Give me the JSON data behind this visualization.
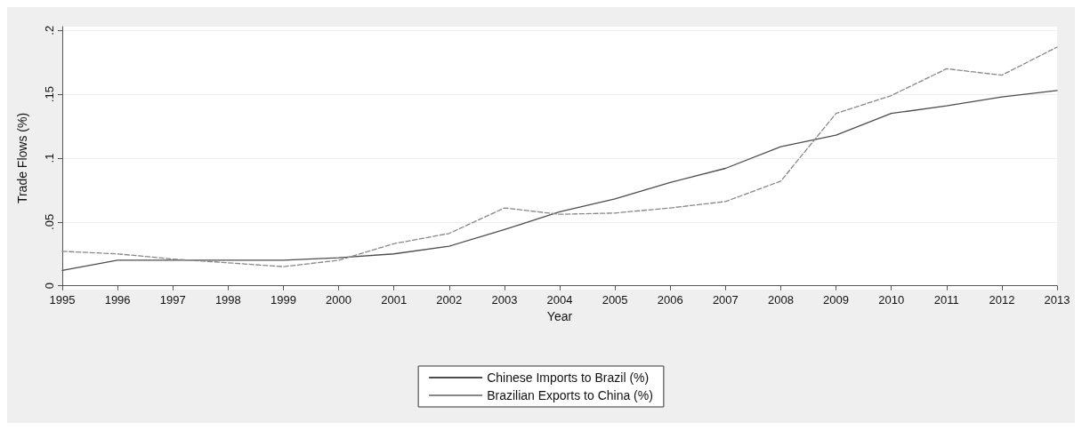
{
  "chart_data": {
    "type": "line",
    "xlabel": "Year",
    "ylabel": "Trade Flows (%)",
    "categories": [
      "1995",
      "1996",
      "1997",
      "1998",
      "1999",
      "2000",
      "2001",
      "2002",
      "2003",
      "2004",
      "2005",
      "2006",
      "2007",
      "2008",
      "2009",
      "2010",
      "2011",
      "2012",
      "2013"
    ],
    "series": [
      {
        "name": "Chinese Imports to Brazil (%)",
        "color": "#4d4d4d",
        "line_style": "solid",
        "values": [
          0.012,
          0.02,
          0.02,
          0.02,
          0.02,
          0.022,
          0.025,
          0.031,
          0.044,
          0.058,
          0.068,
          0.081,
          0.092,
          0.109,
          0.118,
          0.135,
          0.141,
          0.148,
          0.153
        ]
      },
      {
        "name": "Brazilian Exports to China (%)",
        "color": "#888888",
        "line_style": "dashed",
        "values": [
          0.027,
          0.025,
          0.021,
          0.018,
          0.015,
          0.02,
          0.033,
          0.041,
          0.061,
          0.056,
          0.057,
          0.061,
          0.066,
          0.082,
          0.135,
          0.149,
          0.17,
          0.165,
          0.187
        ]
      }
    ],
    "ylim": [
      -0.003,
      0.203
    ],
    "yticks": [
      {
        "value": 0,
        "label": "0"
      },
      {
        "value": 0.05,
        "label": ".05"
      },
      {
        "value": 0.1,
        "label": ".1"
      },
      {
        "value": 0.15,
        "label": ".15"
      },
      {
        "value": 0.2,
        "label": ".2"
      }
    ],
    "grid": "y",
    "legend": "bottom",
    "marker": "none"
  }
}
